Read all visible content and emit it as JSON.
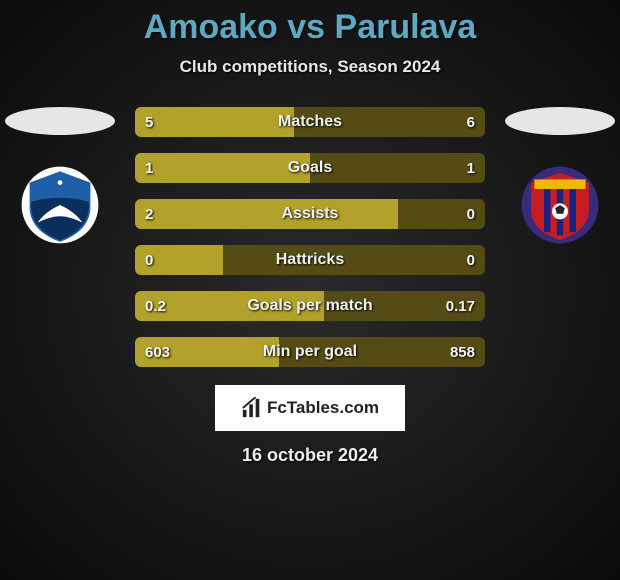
{
  "title": "Amoako vs Parulava",
  "subtitle": "Club competitions, Season 2024",
  "date": "16 october 2024",
  "branding": {
    "text": "FcTables.com"
  },
  "colors": {
    "title": "#5da9c4",
    "bar_left": "#b2a22c",
    "bar_right": "#544c14",
    "ellipse": "#e6e6e6"
  },
  "left_crest": {
    "bg": "#ffffff",
    "shield_top": "#1f5fa8",
    "shield_bottom": "#0a2f5c",
    "bird": "#ffffff"
  },
  "right_crest": {
    "bg": "#3a2a7a",
    "shield_main": "#c61d23",
    "shield_stripe": "#1a237e",
    "ball": "#ffffff"
  },
  "stats": [
    {
      "label": "Matches",
      "left_val": "5",
      "right_val": "6",
      "left_num": 5,
      "right_num": 6
    },
    {
      "label": "Goals",
      "left_val": "1",
      "right_val": "1",
      "left_num": 1,
      "right_num": 1
    },
    {
      "label": "Assists",
      "left_val": "2",
      "right_val": "0",
      "left_num": 2,
      "right_num": 0
    },
    {
      "label": "Hattricks",
      "left_val": "0",
      "right_val": "0",
      "left_num": 0,
      "right_num": 0
    },
    {
      "label": "Goals per match",
      "left_val": "0.2",
      "right_val": "0.17",
      "left_num": 0.2,
      "right_num": 0.17
    },
    {
      "label": "Min per goal",
      "left_val": "603",
      "right_val": "858",
      "left_num": 603,
      "right_num": 858
    }
  ],
  "bar": {
    "total_width": 350,
    "zero_left_pct": 25,
    "zero_right_pct": 75
  }
}
